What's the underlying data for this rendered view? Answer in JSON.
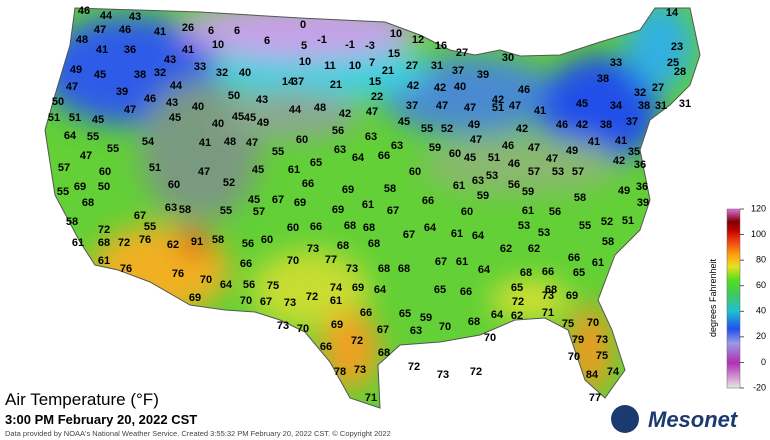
{
  "title": "Air Temperature (°F)",
  "subtitle": "3:00 PM February 20, 2022 CST",
  "footer": "Data provided by NOAA's National Weather Service. Created 3:55:32 PM February 20, 2022 CST. © Copyright 2022",
  "logo": "Mesonet",
  "colorbar": {
    "label": "degrees Fahrenheit",
    "range": [
      -20,
      120
    ],
    "ticks": [
      120,
      100,
      80,
      60,
      40,
      20,
      0,
      -20
    ]
  },
  "stations": [
    46,
    44,
    43,
    14,
    47,
    46,
    41,
    26,
    6,
    6,
    0,
    10,
    12,
    16,
    23,
    48,
    41,
    36,
    41,
    10,
    6,
    -1,
    5,
    -1,
    -3,
    15,
    27,
    49,
    45,
    38,
    32,
    43,
    33,
    32,
    40,
    10,
    11,
    10,
    7,
    21,
    27,
    31,
    37,
    39,
    30,
    33,
    25,
    28,
    47,
    39,
    46,
    43,
    44,
    40,
    50,
    43,
    14,
    37,
    21,
    15,
    42,
    42,
    40,
    42,
    46,
    38,
    32,
    27,
    50,
    47,
    45,
    45,
    44,
    48,
    42,
    47,
    22,
    37,
    47,
    47,
    51,
    47,
    41,
    45,
    34,
    38,
    31,
    31,
    51,
    51,
    45,
    40,
    45,
    49,
    45,
    55,
    52,
    49,
    42,
    46,
    42,
    38,
    37,
    64,
    55,
    54,
    41,
    48,
    47,
    60,
    56,
    63,
    47,
    46,
    47,
    49,
    41,
    41,
    35,
    47,
    55,
    55,
    63,
    63,
    59,
    60,
    45,
    51,
    46,
    47,
    42,
    36,
    65,
    64,
    66,
    57,
    60,
    51,
    47,
    45,
    61,
    66,
    60,
    61,
    53,
    56,
    57,
    53,
    57,
    36,
    50,
    55,
    69,
    60,
    52,
    59,
    63,
    49,
    69,
    58,
    68,
    67,
    63,
    58,
    55,
    45,
    67,
    69,
    69,
    61,
    67,
    66,
    59,
    58,
    39,
    60,
    61,
    56,
    58,
    55,
    57,
    60,
    66,
    68,
    68,
    67,
    64,
    61,
    64,
    53,
    55,
    52,
    51,
    72,
    61,
    68,
    72,
    76,
    62,
    91,
    58,
    56,
    60,
    73,
    68,
    68,
    53,
    62,
    62,
    58,
    61,
    76,
    70,
    77,
    73,
    68,
    68,
    67,
    61,
    64,
    66,
    68,
    66,
    65,
    66,
    61,
    76,
    70,
    64,
    56,
    75,
    74,
    69,
    64,
    65,
    66,
    65,
    68,
    69,
    70,
    67,
    73,
    72,
    61,
    72,
    73,
    69,
    66,
    65,
    59,
    64,
    62,
    71,
    68,
    73,
    70,
    69,
    67,
    63,
    70,
    72,
    70,
    75,
    70,
    79,
    73,
    66,
    68,
    70,
    75,
    72,
    73,
    72,
    78,
    73,
    84,
    74,
    71,
    77
  ]
}
